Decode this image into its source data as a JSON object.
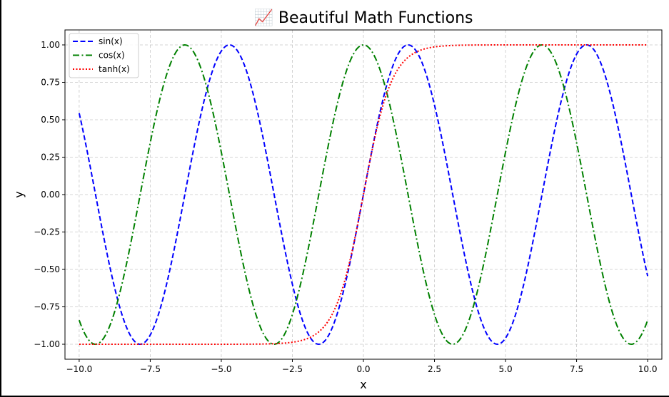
{
  "chart_data": {
    "type": "line",
    "title": "📈 Beautiful Math Functions",
    "xlabel": "x",
    "ylabel": "y",
    "xlim": [
      -10.5,
      10.5
    ],
    "ylim": [
      -1.1,
      1.1
    ],
    "x_ticks": [
      -10.0,
      -7.5,
      -5.0,
      -2.5,
      0.0,
      2.5,
      5.0,
      7.5,
      10.0
    ],
    "x_tick_labels": [
      "−10.0",
      "−7.5",
      "−5.0",
      "−2.5",
      "0.0",
      "2.5",
      "5.0",
      "7.5",
      "10.0"
    ],
    "y_ticks": [
      1.0,
      0.75,
      0.5,
      0.25,
      0.0,
      -0.25,
      -0.5,
      -0.75,
      -1.0
    ],
    "y_tick_labels": [
      "1.00",
      "0.75",
      "0.50",
      "0.25",
      "0.00",
      "−0.25",
      "−0.50",
      "−0.75",
      "−1.00"
    ],
    "grid": true,
    "legend_position": "top-left",
    "x_range": [
      -10,
      10
    ],
    "samples": 400,
    "series": [
      {
        "name": "sin(x)",
        "function": "sin",
        "color": "#0000ff",
        "style": "dashed"
      },
      {
        "name": "cos(x)",
        "function": "cos",
        "color": "#008000",
        "style": "dashdot"
      },
      {
        "name": "tanh(x)",
        "function": "tanh",
        "color": "#ff0000",
        "style": "dotted"
      }
    ]
  }
}
